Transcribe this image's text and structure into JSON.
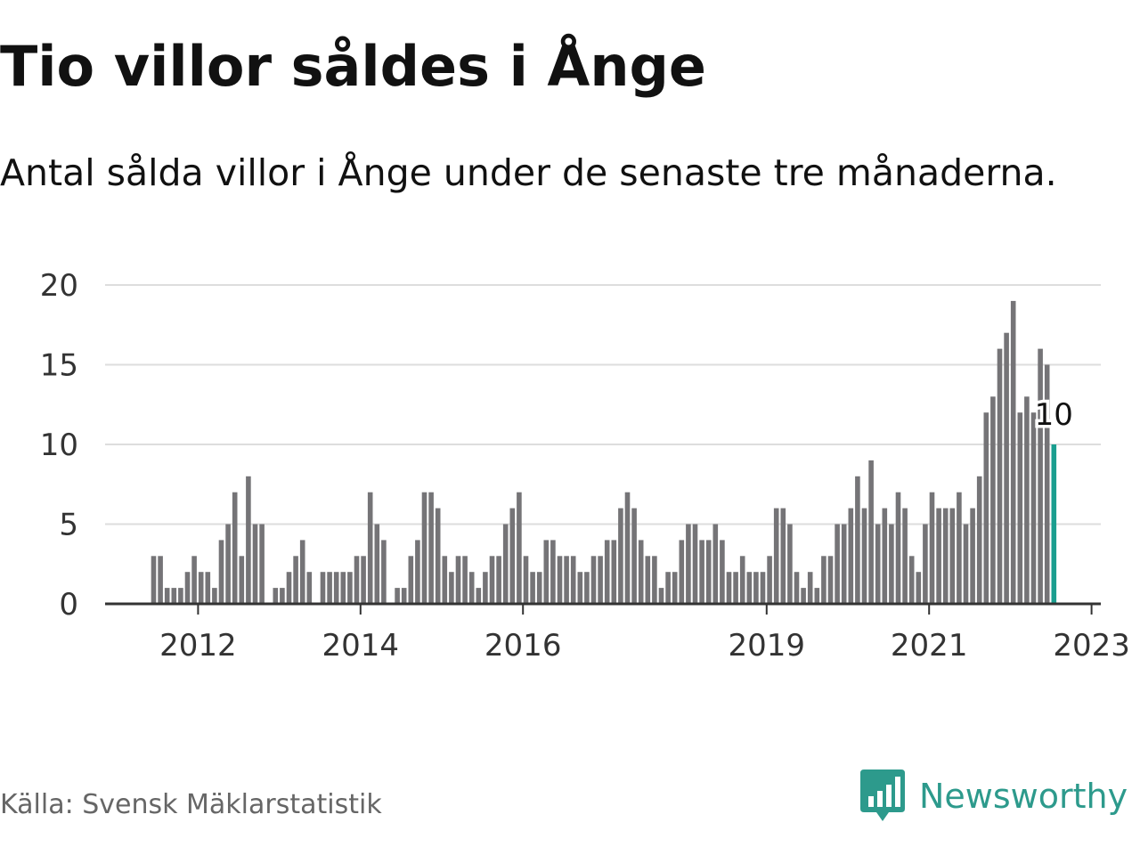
{
  "header": {
    "title": "Tio villor såldes i Ånge",
    "subtitle": "Antal sålda villor i Ånge under de senaste tre månaderna."
  },
  "footer": {
    "source": "Källa: Svensk Mäklarstatistik",
    "brand": "Newsworthy",
    "brand_icon": "bar-chart-speech-bubble-icon"
  },
  "colors": {
    "bar": "#757477",
    "highlight": "#1a9e8f",
    "grid": "#dddddd",
    "axis": "#333333",
    "brand": "#2d9a8c"
  },
  "chart_data": {
    "type": "bar",
    "title": "Tio villor såldes i Ånge",
    "subtitle": "Antal sålda villor i Ånge under de senaste tre månaderna.",
    "xlabel": "",
    "ylabel": "",
    "ylim": [
      0,
      20
    ],
    "yticks": [
      0,
      5,
      10,
      15,
      20
    ],
    "xticks": [
      "2012",
      "2014",
      "2016",
      "2019",
      "2021",
      "2023"
    ],
    "grid": true,
    "legend": "none",
    "start": "2011-06",
    "highlight_last": true,
    "last_value_label": "10",
    "values": [
      3,
      3,
      1,
      1,
      1,
      2,
      3,
      2,
      2,
      1,
      4,
      5,
      7,
      3,
      8,
      5,
      5,
      0,
      1,
      1,
      2,
      3,
      4,
      2,
      0,
      2,
      2,
      2,
      2,
      2,
      3,
      3,
      7,
      5,
      4,
      0,
      1,
      1,
      3,
      4,
      7,
      7,
      6,
      3,
      2,
      3,
      3,
      2,
      1,
      2,
      3,
      3,
      5,
      6,
      7,
      3,
      2,
      2,
      4,
      4,
      3,
      3,
      3,
      2,
      2,
      3,
      3,
      4,
      4,
      6,
      7,
      6,
      4,
      3,
      3,
      1,
      2,
      2,
      4,
      5,
      5,
      4,
      4,
      5,
      4,
      2,
      2,
      3,
      2,
      2,
      2,
      3,
      6,
      6,
      5,
      2,
      1,
      2,
      1,
      3,
      3,
      5,
      5,
      6,
      8,
      6,
      9,
      5,
      6,
      5,
      7,
      6,
      3,
      2,
      5,
      7,
      6,
      6,
      6,
      7,
      5,
      6,
      8,
      12,
      13,
      16,
      17,
      19,
      12,
      13,
      12,
      16,
      15,
      10
    ]
  }
}
